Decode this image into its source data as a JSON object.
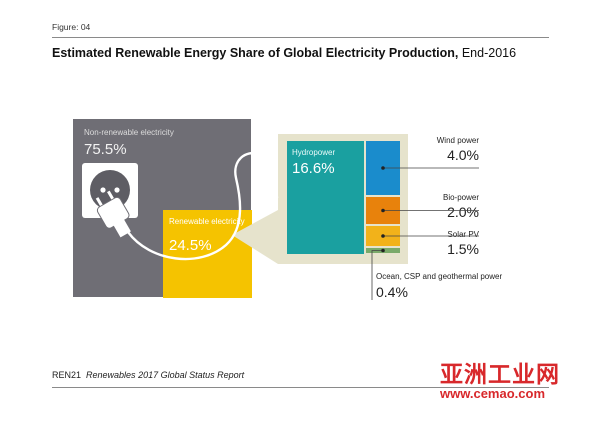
{
  "header": {
    "figure_label": "Figure: 04",
    "title_bold": "Estimated Renewable Energy Share of Global Electricity Production,",
    "title_rest": "End-2016"
  },
  "footer": {
    "org": "REN21",
    "report": "Renewables 2017 Global Status Report"
  },
  "watermark": {
    "logo_text": "亚洲工业网",
    "url": "www.cemao.com"
  },
  "colors": {
    "non_renewable": "#6f6e75",
    "renewable": "#f5c300",
    "hydropower": "#1aa0a0",
    "wind": "#1a8ccc",
    "bio": "#e8820c",
    "solar": "#f2b21a",
    "ocean": "#7aaa6a",
    "callout": "#e6e3cc"
  },
  "icons": [
    "power-socket-icon",
    "power-plug-icon",
    "power-cord-icon",
    "dot-marker-icon"
  ],
  "chart_data": {
    "type": "treemap",
    "title": "Estimated Renewable Energy Share of Global Electricity Production, End-2016",
    "unit": "%",
    "total": [
      {
        "label": "Non-renewable electricity",
        "value": 75.5,
        "display": "75.5%"
      },
      {
        "label": "Renewable electricity",
        "value": 24.5,
        "display": "24.5%"
      }
    ],
    "renewable_breakdown": [
      {
        "label": "Hydropower",
        "value": 16.6,
        "display": "16.6%"
      },
      {
        "label": "Wind power",
        "value": 4.0,
        "display": "4.0%"
      },
      {
        "label": "Bio-power",
        "value": 2.0,
        "display": "2.0%"
      },
      {
        "label": "Solar PV",
        "value": 1.5,
        "display": "1.5%"
      },
      {
        "label": "Ocean, CSP and geothermal power",
        "value": 0.4,
        "display": "0.4%"
      }
    ]
  }
}
